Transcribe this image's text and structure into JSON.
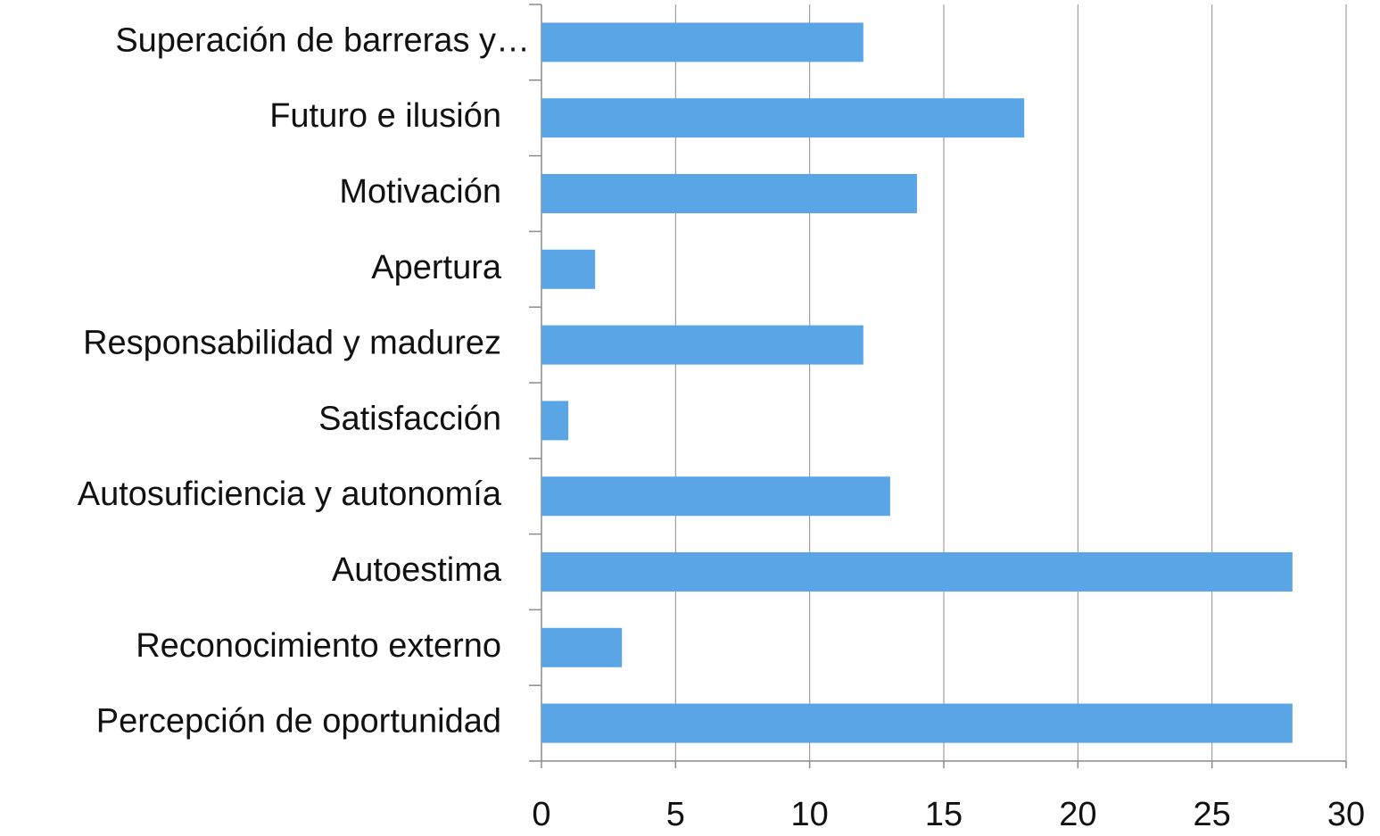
{
  "chart_data": {
    "type": "barh",
    "categories": [
      "Superación de barreras y…",
      "Futuro e ilusión",
      "Motivación",
      "Apertura",
      "Responsabilidad y madurez",
      "Satisfacción",
      "Autosuficiencia y autonomía",
      "Autoestima",
      "Reconocimiento externo",
      "Percepción de oportunidad"
    ],
    "values": [
      12,
      18,
      14,
      2,
      12,
      1,
      13,
      28,
      3,
      28
    ],
    "color": "#5aa5e6",
    "xlim": [
      0,
      30
    ],
    "xticks": [
      0,
      5,
      10,
      15,
      20,
      25,
      30
    ],
    "grid": true
  }
}
